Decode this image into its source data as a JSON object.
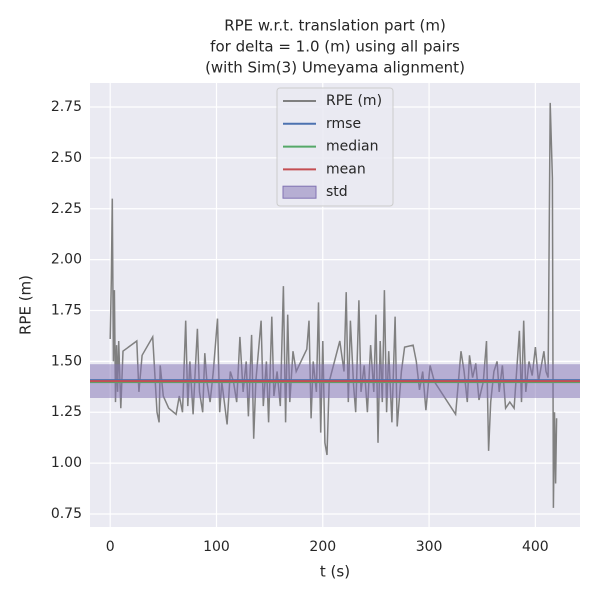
{
  "chart_data": {
    "type": "line",
    "title": [
      "RPE w.r.t. translation part (m)",
      "for delta = 1.0 (m) using all pairs",
      "(with Sim(3) Umeyama alignment)"
    ],
    "xlabel": "t (s)",
    "ylabel": "RPE (m)",
    "xlim": [
      -19,
      442
    ],
    "ylim": [
      0.686,
      2.868
    ],
    "xticks": [
      0,
      100,
      200,
      300,
      400
    ],
    "yticks": [
      0.75,
      {
        "value": 1.0,
        "label": "1.00"
      },
      1.25,
      {
        "value": 1.5,
        "label": "1.50"
      },
      1.75,
      {
        "value": 2.0,
        "label": "2.00"
      },
      2.25,
      {
        "value": 2.5,
        "label": "2.50"
      },
      2.75
    ],
    "grid": true,
    "series": [
      {
        "name": "RPE (m)",
        "color": "#808080",
        "x": [
          0,
          1,
          2,
          3,
          4,
          5,
          6,
          7,
          8,
          10,
          12,
          25,
          27,
          30,
          40,
          44,
          46,
          47,
          50,
          55,
          62,
          65,
          68,
          71,
          73,
          75,
          78,
          80,
          82,
          84,
          87,
          89,
          91,
          94,
          97,
          101,
          103,
          105,
          110,
          113,
          116,
          119,
          122,
          125,
          128,
          130,
          133,
          135,
          137,
          142,
          144,
          147,
          149,
          152,
          154,
          157,
          160,
          163,
          165,
          167,
          169,
          172,
          175,
          185,
          187,
          189,
          191,
          194,
          196,
          198,
          200,
          202,
          204,
          206,
          216,
          220,
          222,
          224,
          226,
          229,
          231,
          234,
          236,
          239,
          242,
          245,
          248,
          250,
          252,
          254,
          256,
          258,
          260,
          262,
          265,
          268,
          270,
          274,
          277,
          285,
          288,
          291,
          294,
          297,
          301,
          305,
          325,
          330,
          333,
          336,
          338,
          341,
          344,
          347,
          351,
          354,
          356,
          358,
          361,
          364,
          366,
          369,
          372,
          376,
          380,
          385,
          387,
          389,
          391,
          394,
          397,
          400,
          403,
          408,
          410,
          412,
          414,
          416,
          417,
          418,
          419,
          420
        ],
        "values": [
          1.61,
          1.9,
          2.3,
          1.5,
          1.85,
          1.3,
          1.58,
          1.35,
          1.6,
          1.27,
          1.55,
          1.6,
          1.35,
          1.53,
          1.62,
          1.25,
          1.2,
          1.48,
          1.33,
          1.27,
          1.24,
          1.33,
          1.25,
          1.7,
          1.28,
          1.5,
          1.24,
          1.45,
          1.66,
          1.35,
          1.25,
          1.54,
          1.4,
          1.3,
          1.45,
          1.71,
          1.25,
          1.4,
          1.19,
          1.45,
          1.4,
          1.3,
          1.62,
          1.35,
          1.5,
          1.23,
          1.63,
          1.12,
          1.4,
          1.7,
          1.28,
          1.5,
          1.2,
          1.72,
          1.33,
          1.45,
          1.28,
          1.87,
          1.2,
          1.73,
          1.3,
          1.55,
          1.45,
          1.56,
          1.7,
          1.22,
          1.5,
          1.35,
          1.79,
          1.15,
          1.6,
          1.1,
          1.04,
          1.4,
          1.6,
          1.45,
          1.84,
          1.3,
          1.7,
          1.38,
          1.25,
          1.8,
          1.35,
          1.48,
          1.25,
          1.58,
          1.35,
          1.73,
          1.1,
          1.6,
          1.3,
          1.85,
          1.25,
          1.55,
          1.2,
          1.72,
          1.18,
          1.45,
          1.57,
          1.58,
          1.5,
          1.36,
          1.45,
          1.26,
          1.48,
          1.4,
          1.24,
          1.55,
          1.45,
          1.3,
          1.53,
          1.42,
          1.49,
          1.31,
          1.4,
          1.6,
          1.06,
          1.3,
          1.45,
          1.5,
          1.35,
          1.48,
          1.27,
          1.3,
          1.27,
          1.65,
          1.3,
          1.7,
          1.35,
          1.5,
          1.43,
          1.57,
          1.4,
          1.55,
          1.45,
          1.42,
          2.77,
          2.4,
          0.78,
          1.25,
          0.9,
          1.22
        ]
      }
    ],
    "stats": [
      {
        "name": "rmse",
        "color": "#4c72b0",
        "value": 1.408
      },
      {
        "name": "median",
        "color": "#55a868",
        "value": 1.398
      },
      {
        "name": "mean",
        "color": "#c44e52",
        "value": 1.403
      }
    ],
    "std": {
      "name": "std",
      "color": "#8172b3",
      "value": 0.083
    }
  }
}
